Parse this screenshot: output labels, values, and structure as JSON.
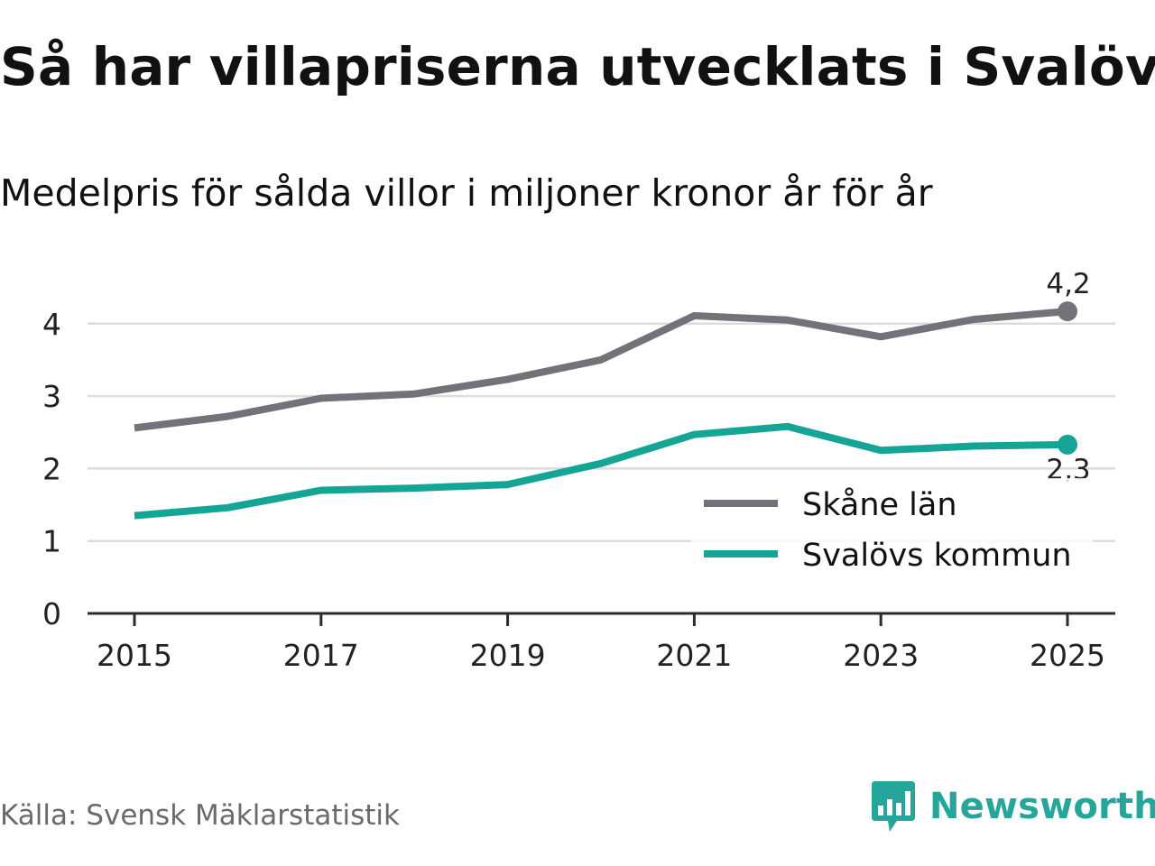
{
  "header": {
    "title": "Så har villapriserna utvecklats i Svalöv",
    "subtitle": "Medelpris för sålda villor i miljoner kronor år för år"
  },
  "footer": {
    "source": "Källa: Svensk Mäklarstatistik",
    "brand": "Newsworthy",
    "brand_color": "#26a69a"
  },
  "chart_data": {
    "type": "line",
    "title": "Så har villapriserna utvecklats i Svalöv",
    "subtitle": "Medelpris för sålda villor i miljoner kronor år för år",
    "xlabel": "",
    "ylabel": "",
    "x": [
      2015,
      2016,
      2017,
      2018,
      2019,
      2020,
      2021,
      2022,
      2023,
      2024,
      2025
    ],
    "x_ticks": [
      "2015",
      "2017",
      "2019",
      "2021",
      "2023",
      "2025"
    ],
    "y_ticks": [
      "0",
      "1",
      "2",
      "3",
      "4"
    ],
    "ylim": [
      0,
      4.5
    ],
    "grid": true,
    "legend_position": "bottom-right",
    "series": [
      {
        "name": "Skåne län",
        "color": "#737278",
        "values": [
          2.56,
          2.72,
          2.97,
          3.03,
          3.23,
          3.5,
          4.11,
          4.05,
          3.82,
          4.06,
          4.17
        ],
        "end_label": "4,2"
      },
      {
        "name": "Svalövs kommun",
        "color": "#14a597",
        "values": [
          1.35,
          1.46,
          1.7,
          1.73,
          1.78,
          2.07,
          2.47,
          2.58,
          2.25,
          2.31,
          2.33
        ],
        "end_label": "2,3"
      }
    ]
  }
}
